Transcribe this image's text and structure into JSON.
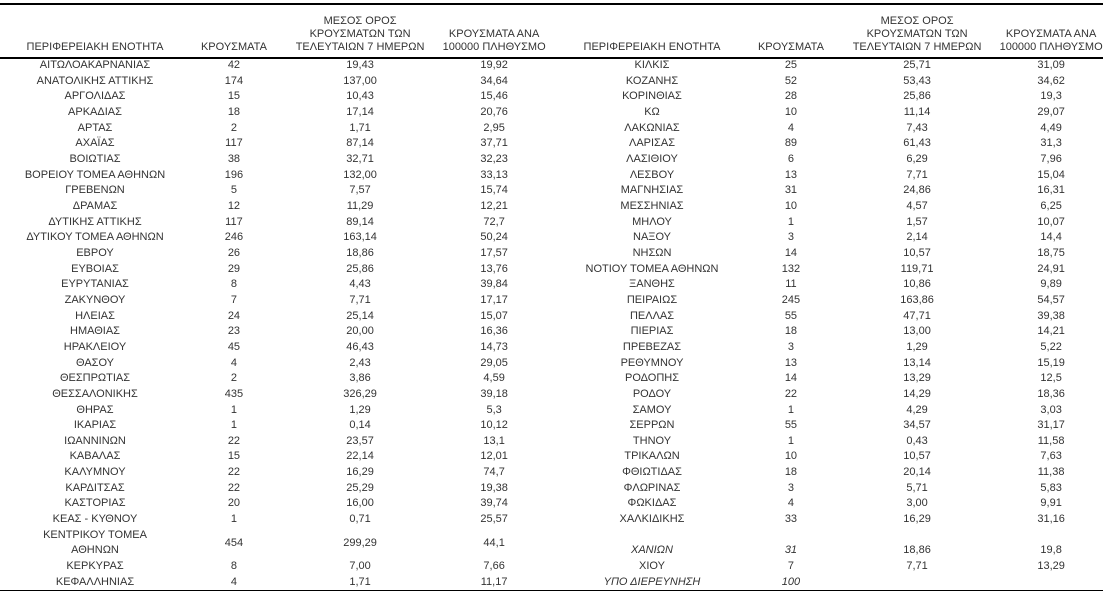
{
  "headers": {
    "region": "ΠΕΡΙΦΕΡΕΙΑΚΗ ΕΝΟΤΗΤΑ",
    "cases": "ΚΡΟΥΣΜΑΤΑ",
    "avg7": "ΜΕΣΟΣ ΟΡΟΣ\nΚΡΟΥΣΜΑΤΩΝ ΤΩΝ\nΤΕΛΕΥΤΑΙΩΝ 7 ΗΜΕΡΩΝ",
    "per100k": "ΚΡΟΥΣΜΑΤΑ ΑΝΑ\n100000 ΠΛΗΘΥΣΜΟ"
  },
  "colors": {
    "text": "#333333",
    "line": "#000000",
    "background": "#ffffff"
  },
  "tables": {
    "left": {
      "rows": [
        {
          "name": "ΑΙΤΩΛΟΑΚΑΡΝΑΝΙΑΣ",
          "cases": "42",
          "avg7": "19,43",
          "per100k": "19,92"
        },
        {
          "name": "ΑΝΑΤΟΛΙΚΗΣ ΑΤΤΙΚΗΣ",
          "cases": "174",
          "avg7": "137,00",
          "per100k": "34,64"
        },
        {
          "name": "ΑΡΓΟΛΙΔΑΣ",
          "cases": "15",
          "avg7": "10,43",
          "per100k": "15,46"
        },
        {
          "name": "ΑΡΚΑΔΙΑΣ",
          "cases": "18",
          "avg7": "17,14",
          "per100k": "20,76"
        },
        {
          "name": "ΑΡΤΑΣ",
          "cases": "2",
          "avg7": "1,71",
          "per100k": "2,95"
        },
        {
          "name": "ΑΧΑΪΑΣ",
          "cases": "117",
          "avg7": "87,14",
          "per100k": "37,71"
        },
        {
          "name": "ΒΟΙΩΤΙΑΣ",
          "cases": "38",
          "avg7": "32,71",
          "per100k": "32,23"
        },
        {
          "name": "ΒΟΡΕΙΟΥ ΤΟΜΕΑ ΑΘΗΝΩΝ",
          "cases": "196",
          "avg7": "132,00",
          "per100k": "33,13"
        },
        {
          "name": "ΓΡΕΒΕΝΩΝ",
          "cases": "5",
          "avg7": "7,57",
          "per100k": "15,74"
        },
        {
          "name": "ΔΡΑΜΑΣ",
          "cases": "12",
          "avg7": "11,29",
          "per100k": "12,21"
        },
        {
          "name": "ΔΥΤΙΚΗΣ ΑΤΤΙΚΗΣ",
          "cases": "117",
          "avg7": "89,14",
          "per100k": "72,7"
        },
        {
          "name": "ΔΥΤΙΚΟΥ ΤΟΜΕΑ ΑΘΗΝΩΝ",
          "cases": "246",
          "avg7": "163,14",
          "per100k": "50,24"
        },
        {
          "name": "ΕΒΡΟΥ",
          "cases": "26",
          "avg7": "18,86",
          "per100k": "17,57"
        },
        {
          "name": "ΕΥΒΟΙΑΣ",
          "cases": "29",
          "avg7": "25,86",
          "per100k": "13,76"
        },
        {
          "name": "ΕΥΡΥΤΑΝΙΑΣ",
          "cases": "8",
          "avg7": "4,43",
          "per100k": "39,84"
        },
        {
          "name": "ΖΑΚΥΝΘΟΥ",
          "cases": "7",
          "avg7": "7,71",
          "per100k": "17,17"
        },
        {
          "name": "ΗΛΕΙΑΣ",
          "cases": "24",
          "avg7": "25,14",
          "per100k": "15,07"
        },
        {
          "name": "ΗΜΑΘΙΑΣ",
          "cases": "23",
          "avg7": "20,00",
          "per100k": "16,36"
        },
        {
          "name": "ΗΡΑΚΛΕΙΟΥ",
          "cases": "45",
          "avg7": "46,43",
          "per100k": "14,73"
        },
        {
          "name": "ΘΑΣΟΥ",
          "cases": "4",
          "avg7": "2,43",
          "per100k": "29,05"
        },
        {
          "name": "ΘΕΣΠΡΩΤΙΑΣ",
          "cases": "2",
          "avg7": "3,86",
          "per100k": "4,59"
        },
        {
          "name": "ΘΕΣΣΑΛΟΝΙΚΗΣ",
          "cases": "435",
          "avg7": "326,29",
          "per100k": "39,18"
        },
        {
          "name": "ΘΗΡΑΣ",
          "cases": "1",
          "avg7": "1,29",
          "per100k": "5,3"
        },
        {
          "name": "ΙΚΑΡΙΑΣ",
          "cases": "1",
          "avg7": "0,14",
          "per100k": "10,12"
        },
        {
          "name": "ΙΩΑΝΝΙΝΩΝ",
          "cases": "22",
          "avg7": "23,57",
          "per100k": "13,1"
        },
        {
          "name": "ΚΑΒΑΛΑΣ",
          "cases": "15",
          "avg7": "22,14",
          "per100k": "12,01"
        },
        {
          "name": "ΚΑΛΥΜΝΟΥ",
          "cases": "22",
          "avg7": "16,29",
          "per100k": "74,7"
        },
        {
          "name": "ΚΑΡΔΙΤΣΑΣ",
          "cases": "22",
          "avg7": "25,29",
          "per100k": "19,38"
        },
        {
          "name": "ΚΑΣΤΟΡΙΑΣ",
          "cases": "20",
          "avg7": "16,00",
          "per100k": "39,74"
        },
        {
          "name": "ΚΕΑΣ - ΚΥΘΝΟΥ",
          "cases": "1",
          "avg7": "0,71",
          "per100k": "25,57"
        },
        {
          "name": "ΚΕΝΤΡΙΚΟΥ ΤΟΜΕΑ\nΑΘΗΝΩΝ",
          "cases": "454",
          "avg7": "299,29",
          "per100k": "44,1",
          "tall": true
        },
        {
          "name": "ΚΕΡΚΥΡΑΣ",
          "cases": "8",
          "avg7": "7,00",
          "per100k": "7,66"
        },
        {
          "name": "ΚΕΦΑΛΛΗΝΙΑΣ",
          "cases": "4",
          "avg7": "1,71",
          "per100k": "11,17"
        }
      ]
    },
    "right": {
      "rows": [
        {
          "name": "ΚΙΛΚΙΣ",
          "cases": "25",
          "avg7": "25,71",
          "per100k": "31,09"
        },
        {
          "name": "ΚΟΖΑΝΗΣ",
          "cases": "52",
          "avg7": "53,43",
          "per100k": "34,62"
        },
        {
          "name": "ΚΟΡΙΝΘΙΑΣ",
          "cases": "28",
          "avg7": "25,86",
          "per100k": "19,3"
        },
        {
          "name": "ΚΩ",
          "cases": "10",
          "avg7": "11,14",
          "per100k": "29,07"
        },
        {
          "name": "ΛΑΚΩΝΙΑΣ",
          "cases": "4",
          "avg7": "7,43",
          "per100k": "4,49"
        },
        {
          "name": "ΛΑΡΙΣΑΣ",
          "cases": "89",
          "avg7": "61,43",
          "per100k": "31,3"
        },
        {
          "name": "ΛΑΣΙΘΙΟΥ",
          "cases": "6",
          "avg7": "6,29",
          "per100k": "7,96"
        },
        {
          "name": "ΛΕΣΒΟΥ",
          "cases": "13",
          "avg7": "7,71",
          "per100k": "15,04"
        },
        {
          "name": "ΜΑΓΝΗΣΙΑΣ",
          "cases": "31",
          "avg7": "24,86",
          "per100k": "16,31"
        },
        {
          "name": "ΜΕΣΣΗΝΙΑΣ",
          "cases": "10",
          "avg7": "4,57",
          "per100k": "6,25"
        },
        {
          "name": "ΜΗΛΟΥ",
          "cases": "1",
          "avg7": "1,57",
          "per100k": "10,07"
        },
        {
          "name": "ΝΑΞΟΥ",
          "cases": "3",
          "avg7": "2,14",
          "per100k": "14,4"
        },
        {
          "name": "ΝΗΣΩΝ",
          "cases": "14",
          "avg7": "10,57",
          "per100k": "18,75"
        },
        {
          "name": "ΝΟΤΙΟΥ ΤΟΜΕΑ ΑΘΗΝΩΝ",
          "cases": "132",
          "avg7": "119,71",
          "per100k": "24,91"
        },
        {
          "name": "ΞΑΝΘΗΣ",
          "cases": "11",
          "avg7": "10,86",
          "per100k": "9,89"
        },
        {
          "name": "ΠΕΙΡΑΙΩΣ",
          "cases": "245",
          "avg7": "163,86",
          "per100k": "54,57"
        },
        {
          "name": "ΠΕΛΛΑΣ",
          "cases": "55",
          "avg7": "47,71",
          "per100k": "39,38"
        },
        {
          "name": "ΠΙΕΡΙΑΣ",
          "cases": "18",
          "avg7": "13,00",
          "per100k": "14,21"
        },
        {
          "name": "ΠΡΕΒΕΖΑΣ",
          "cases": "3",
          "avg7": "1,29",
          "per100k": "5,22"
        },
        {
          "name": "ΡΕΘΥΜΝΟΥ",
          "cases": "13",
          "avg7": "13,14",
          "per100k": "15,19"
        },
        {
          "name": "ΡΟΔΟΠΗΣ",
          "cases": "14",
          "avg7": "13,29",
          "per100k": "12,5"
        },
        {
          "name": "ΡΟΔΟΥ",
          "cases": "22",
          "avg7": "14,29",
          "per100k": "18,36"
        },
        {
          "name": "ΣΑΜΟΥ",
          "cases": "1",
          "avg7": "4,29",
          "per100k": "3,03"
        },
        {
          "name": "ΣΕΡΡΩΝ",
          "cases": "55",
          "avg7": "34,57",
          "per100k": "31,17"
        },
        {
          "name": "ΤΗΝΟΥ",
          "cases": "1",
          "avg7": "0,43",
          "per100k": "11,58"
        },
        {
          "name": "ΤΡΙΚΑΛΩΝ",
          "cases": "10",
          "avg7": "10,57",
          "per100k": "7,63"
        },
        {
          "name": "ΦΘΙΩΤΙΔΑΣ",
          "cases": "18",
          "avg7": "20,14",
          "per100k": "11,38"
        },
        {
          "name": "ΦΛΩΡΙΝΑΣ",
          "cases": "3",
          "avg7": "5,71",
          "per100k": "5,83"
        },
        {
          "name": "ΦΩΚΙΔΑΣ",
          "cases": "4",
          "avg7": "3,00",
          "per100k": "9,91"
        },
        {
          "name": "ΧΑΛΚΙΔΙΚΗΣ",
          "cases": "33",
          "avg7": "16,29",
          "per100k": "31,16"
        },
        {
          "name": "",
          "cases": "",
          "avg7": "",
          "per100k": "",
          "blank": true
        },
        {
          "name": "ΧΑΝΙΩΝ",
          "cases": "31",
          "avg7": "18,86",
          "per100k": "19,8",
          "italic": true
        },
        {
          "name": "ΧΙΟΥ",
          "cases": "7",
          "avg7": "7,71",
          "per100k": "13,29"
        },
        {
          "name": "ΥΠΟ ΔΙΕΡΕΥΝΗΣΗ",
          "cases": "100",
          "avg7": "",
          "per100k": "",
          "italic": true
        }
      ]
    }
  }
}
